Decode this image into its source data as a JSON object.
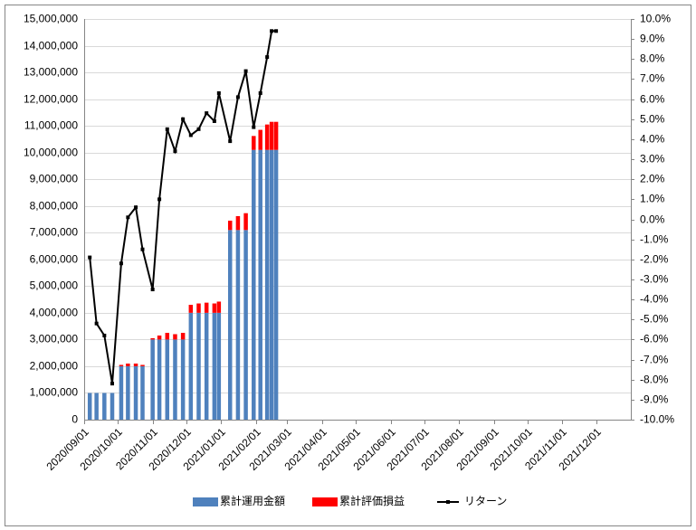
{
  "chart_data": {
    "type": "bar-line",
    "x": [
      "2020/09/06",
      "2020/09/12",
      "2020/09/19",
      "2020/09/26",
      "2020/10/04",
      "2020/10/10",
      "2020/10/17",
      "2020/10/23",
      "2020/11/01",
      "2020/11/07",
      "2020/11/14",
      "2020/11/21",
      "2020/11/28",
      "2020/12/05",
      "2020/12/12",
      "2020/12/19",
      "2020/12/26",
      "2020/12/30",
      "2021/01/09",
      "2021/01/16",
      "2021/01/23",
      "2021/01/30",
      "2021/02/05",
      "2021/02/11",
      "2021/02/15",
      "2021/02/19"
    ],
    "series": [
      {
        "name": "累計運用金額",
        "color": "#4f81bd",
        "values": [
          1000000,
          1000000,
          1000000,
          1000000,
          2000000,
          2000000,
          2000000,
          2000000,
          3000000,
          3000000,
          3000000,
          3000000,
          3000000,
          4000000,
          4000000,
          4000000,
          4000000,
          4000000,
          7100000,
          7100000,
          7100000,
          10100000,
          10100000,
          10100000,
          10100000,
          10100000
        ]
      },
      {
        "name": "累計評価損益",
        "color": "#ff0000",
        "values": [
          0,
          0,
          0,
          0,
          50000,
          100000,
          100000,
          50000,
          50000,
          150000,
          250000,
          200000,
          250000,
          300000,
          350000,
          380000,
          350000,
          420000,
          350000,
          520000,
          630000,
          520000,
          750000,
          950000,
          1050000,
          1050000
        ]
      },
      {
        "name": "リターン",
        "color": "#000000",
        "axis": "y2",
        "values": [
          -1.9,
          -5.2,
          -5.8,
          -8.2,
          -2.2,
          0.1,
          0.6,
          -1.5,
          -3.5,
          1.0,
          4.5,
          3.4,
          5.0,
          4.2,
          4.5,
          5.3,
          4.9,
          6.3,
          3.9,
          6.1,
          7.4,
          4.6,
          6.3,
          8.1,
          9.4,
          9.4
        ]
      }
    ],
    "xlim": [
      "2020/09/01",
      "2022/01/01"
    ],
    "xticks": [
      "2020/09/01",
      "2020/10/01",
      "2020/11/01",
      "2020/12/01",
      "2021/01/01",
      "2021/02/01",
      "2021/03/01",
      "2021/04/01",
      "2021/05/01",
      "2021/06/01",
      "2021/07/01",
      "2021/08/01",
      "2021/09/01",
      "2021/10/01",
      "2021/11/01",
      "2021/12/01"
    ],
    "ylim": [
      0,
      15000000
    ],
    "yticks": [
      {
        "value": 0,
        "label": "0"
      },
      {
        "value": 1000000,
        "label": "1,000,000"
      },
      {
        "value": 2000000,
        "label": "2,000,000"
      },
      {
        "value": 3000000,
        "label": "3,000,000"
      },
      {
        "value": 4000000,
        "label": "4,000,000"
      },
      {
        "value": 5000000,
        "label": "5,000,000"
      },
      {
        "value": 6000000,
        "label": "6,000,000"
      },
      {
        "value": 7000000,
        "label": "7,000,000"
      },
      {
        "value": 8000000,
        "label": "8,000,000"
      },
      {
        "value": 9000000,
        "label": "9,000,000"
      },
      {
        "value": 10000000,
        "label": "10,000,000"
      },
      {
        "value": 11000000,
        "label": "11,000,000"
      },
      {
        "value": 12000000,
        "label": "12,000,000"
      },
      {
        "value": 13000000,
        "label": "13,000,000"
      },
      {
        "value": 14000000,
        "label": "14,000,000"
      },
      {
        "value": 15000000,
        "label": "15,000,000"
      }
    ],
    "y2lim": [
      -10,
      10
    ],
    "y2ticks": [
      {
        "value": -10,
        "label": "-10.0%"
      },
      {
        "value": -9,
        "label": "-9.0%"
      },
      {
        "value": -8,
        "label": "-8.0%"
      },
      {
        "value": -7,
        "label": "-7.0%"
      },
      {
        "value": -6,
        "label": "-6.0%"
      },
      {
        "value": -5,
        "label": "-5.0%"
      },
      {
        "value": -4,
        "label": "-4.0%"
      },
      {
        "value": -3,
        "label": "-3.0%"
      },
      {
        "value": -2,
        "label": "-2.0%"
      },
      {
        "value": -1,
        "label": "-1.0%"
      },
      {
        "value": 0,
        "label": "0.0%"
      },
      {
        "value": 1,
        "label": "1.0%"
      },
      {
        "value": 2,
        "label": "2.0%"
      },
      {
        "value": 3,
        "label": "3.0%"
      },
      {
        "value": 4,
        "label": "4.0%"
      },
      {
        "value": 5,
        "label": "5.0%"
      },
      {
        "value": 6,
        "label": "6.0%"
      },
      {
        "value": 7,
        "label": "7.0%"
      },
      {
        "value": 8,
        "label": "8.0%"
      },
      {
        "value": 9,
        "label": "9.0%"
      },
      {
        "value": 10,
        "label": "10.0%"
      }
    ],
    "grid": true,
    "legend": "bottom"
  }
}
